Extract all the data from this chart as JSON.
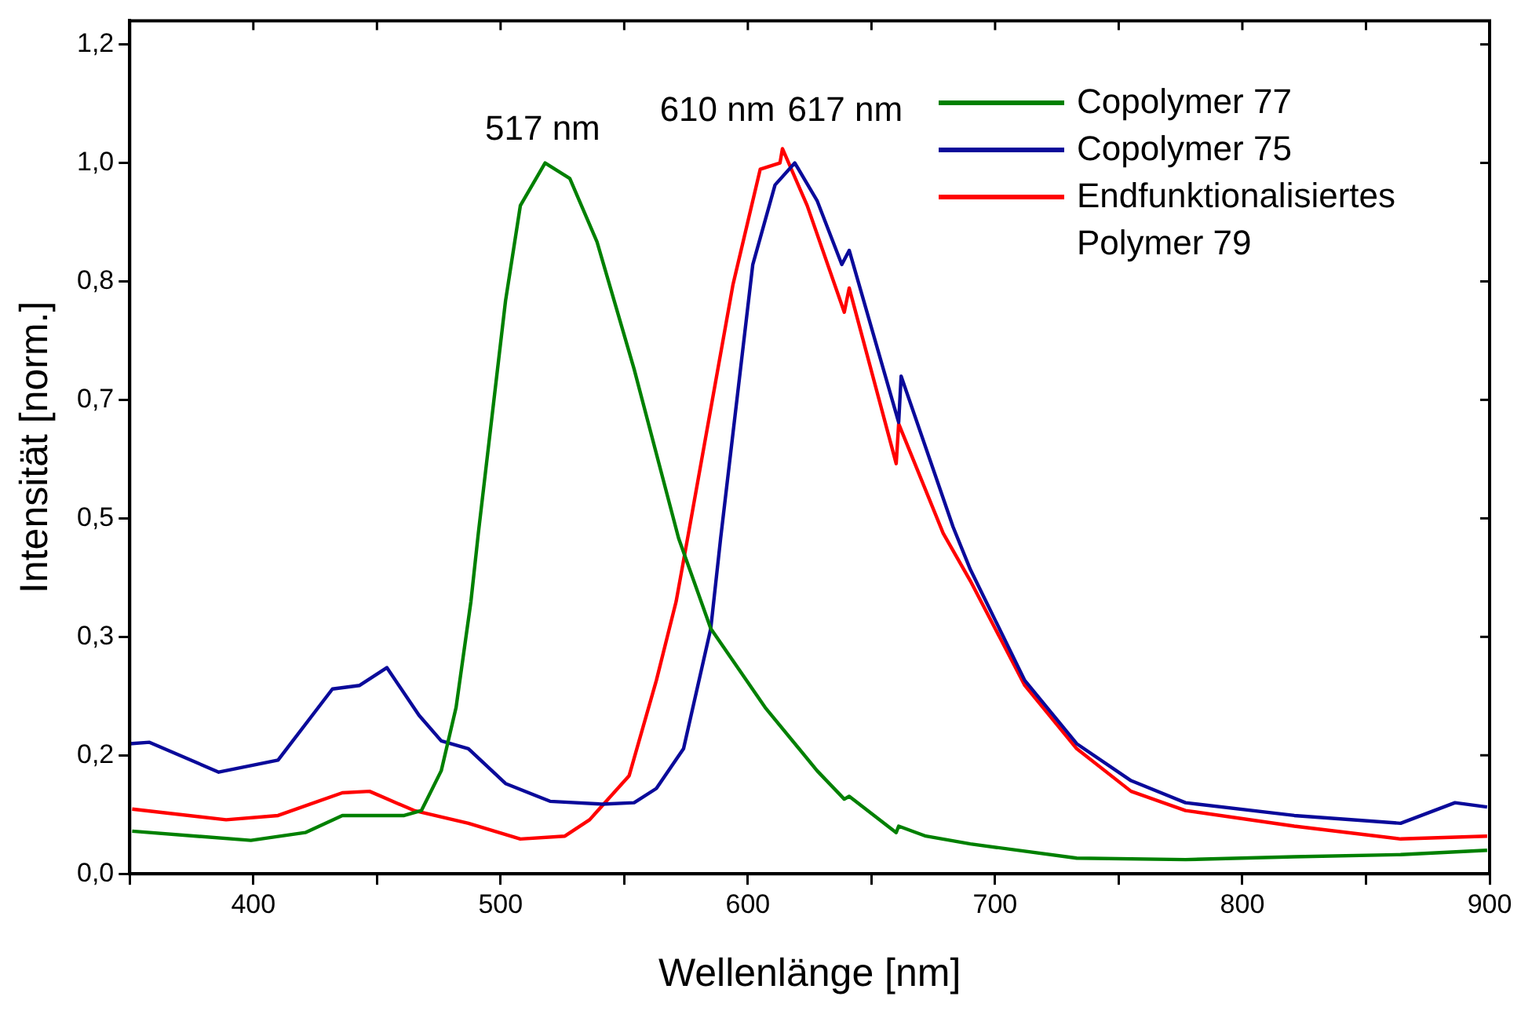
{
  "chart_data": {
    "type": "line",
    "xlabel": "Wellenlänge [nm]",
    "ylabel": "Intensität [norm.]",
    "xlim": [
      350,
      900
    ],
    "xticks": [
      {
        "value": 350,
        "label": null
      },
      400,
      {
        "value": 450,
        "label": null
      },
      500,
      {
        "value": 550,
        "label": null
      },
      600,
      {
        "value": 650,
        "label": null
      },
      700,
      {
        "value": 750,
        "label": null
      },
      800,
      {
        "value": 850,
        "label": null
      },
      900
    ],
    "ylim": [
      0,
      1.2
    ],
    "yticks": [
      {
        "value": 0,
        "label": "0,0"
      },
      {
        "value": 0.1667,
        "label": "0,2"
      },
      {
        "value": 0.3333,
        "label": "0,3"
      },
      {
        "value": 0.5,
        "label": "0,5"
      },
      {
        "value": 0.6667,
        "label": "0,7"
      },
      {
        "value": 0.8333,
        "label": "0,8"
      },
      {
        "value": 1.0,
        "label": "1,0"
      },
      {
        "value": 1.1667,
        "label": "1,2"
      }
    ],
    "grid": false,
    "legend": "top right",
    "marker": "none",
    "line_style": "solid",
    "annotations": [
      {
        "text": "517 nm",
        "x": 517,
        "y": 1.0
      },
      {
        "text": "610 nm",
        "x": 610,
        "y": 1.0
      },
      {
        "text": "617 nm",
        "x": 617,
        "y": 1.0
      }
    ],
    "series": [
      {
        "name": "Copolymer 77",
        "color": "#008000",
        "x": [
          351,
          399,
          421,
          436,
          461,
          468,
          476,
          482,
          488,
          491,
          502,
          508,
          518,
          528,
          539,
          554,
          572,
          585,
          607,
          628,
          639,
          641,
          660,
          661,
          672,
          690,
          733,
          777,
          821,
          864,
          899
        ],
        "values": [
          0.06,
          0.047,
          0.058,
          0.082,
          0.082,
          0.089,
          0.145,
          0.234,
          0.383,
          0.479,
          0.806,
          0.94,
          1.0,
          0.978,
          0.889,
          0.71,
          0.472,
          0.345,
          0.234,
          0.145,
          0.105,
          0.109,
          0.058,
          0.067,
          0.053,
          0.042,
          0.022,
          0.02,
          0.024,
          0.027,
          0.033
        ]
      },
      {
        "name": "Copolymer 75",
        "color": "#0a0a9a",
        "x": [
          350,
          358,
          386,
          410,
          432,
          443,
          454,
          467,
          476,
          487,
          502,
          520,
          541,
          554,
          563,
          574,
          585,
          589,
          602,
          611,
          619,
          628,
          638,
          641,
          661,
          662,
          683,
          690,
          712,
          733,
          755,
          777,
          821,
          864,
          886,
          899
        ],
        "values": [
          0.183,
          0.185,
          0.143,
          0.16,
          0.26,
          0.265,
          0.29,
          0.223,
          0.187,
          0.176,
          0.127,
          0.102,
          0.098,
          0.1,
          0.12,
          0.176,
          0.345,
          0.472,
          0.857,
          0.969,
          1.0,
          0.947,
          0.857,
          0.877,
          0.635,
          0.7,
          0.488,
          0.428,
          0.272,
          0.183,
          0.131,
          0.1,
          0.082,
          0.071,
          0.1,
          0.094
        ]
      },
      {
        "name": "Endfunktionalisiertes Polymer 79",
        "color": "#ff0000",
        "x": [
          351,
          389,
          410,
          436,
          447,
          465,
          487,
          508,
          526,
          536,
          552,
          563,
          571,
          576,
          594,
          605,
          613,
          614,
          624,
          639,
          641,
          660,
          661,
          679,
          690,
          712,
          733,
          755,
          777,
          821,
          864,
          899
        ],
        "values": [
          0.091,
          0.076,
          0.082,
          0.114,
          0.116,
          0.089,
          0.071,
          0.049,
          0.053,
          0.076,
          0.138,
          0.272,
          0.383,
          0.479,
          0.829,
          0.991,
          1.0,
          1.02,
          0.94,
          0.79,
          0.824,
          0.577,
          0.633,
          0.479,
          0.412,
          0.265,
          0.176,
          0.116,
          0.089,
          0.067,
          0.049,
          0.053
        ]
      }
    ]
  }
}
